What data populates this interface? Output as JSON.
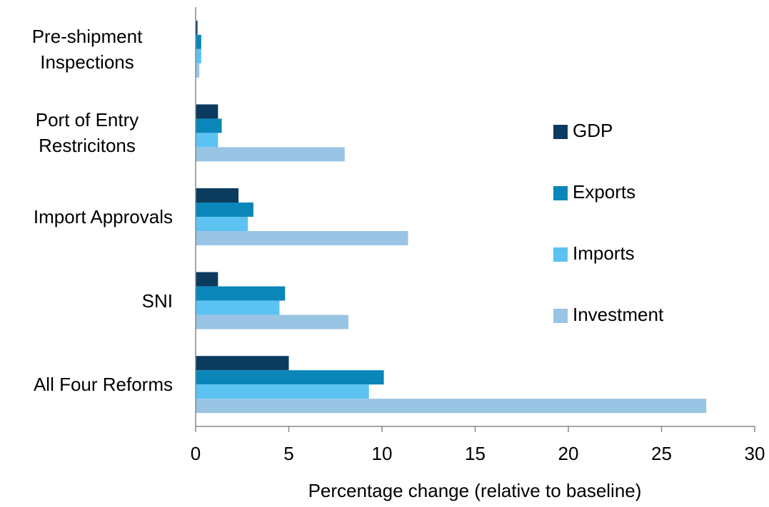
{
  "chart_data": {
    "type": "hbar",
    "xlabel": "Percentage change (relative to baseline)",
    "categories": [
      "Pre-shipment Inspections",
      "Port of Entry Restricitons",
      "Import Approvals",
      "SNI",
      "All Four Reforms"
    ],
    "series": [
      {
        "name": "GDP",
        "color": "#0b3b5e",
        "values": [
          0.1,
          1.2,
          2.3,
          1.2,
          5.0
        ]
      },
      {
        "name": "Exports",
        "color": "#0a86b9",
        "values": [
          0.3,
          1.4,
          3.1,
          4.8,
          10.1
        ]
      },
      {
        "name": "Imports",
        "color": "#5bc2f2",
        "values": [
          0.3,
          1.2,
          2.8,
          4.5,
          9.3
        ]
      },
      {
        "name": "Investment",
        "color": "#9ac4e4",
        "values": [
          0.2,
          8.0,
          11.4,
          8.2,
          27.4
        ]
      }
    ],
    "xlim": [
      0,
      30
    ],
    "xticks": [
      0,
      5,
      10,
      15,
      20,
      25,
      30
    ],
    "legend": "right"
  }
}
